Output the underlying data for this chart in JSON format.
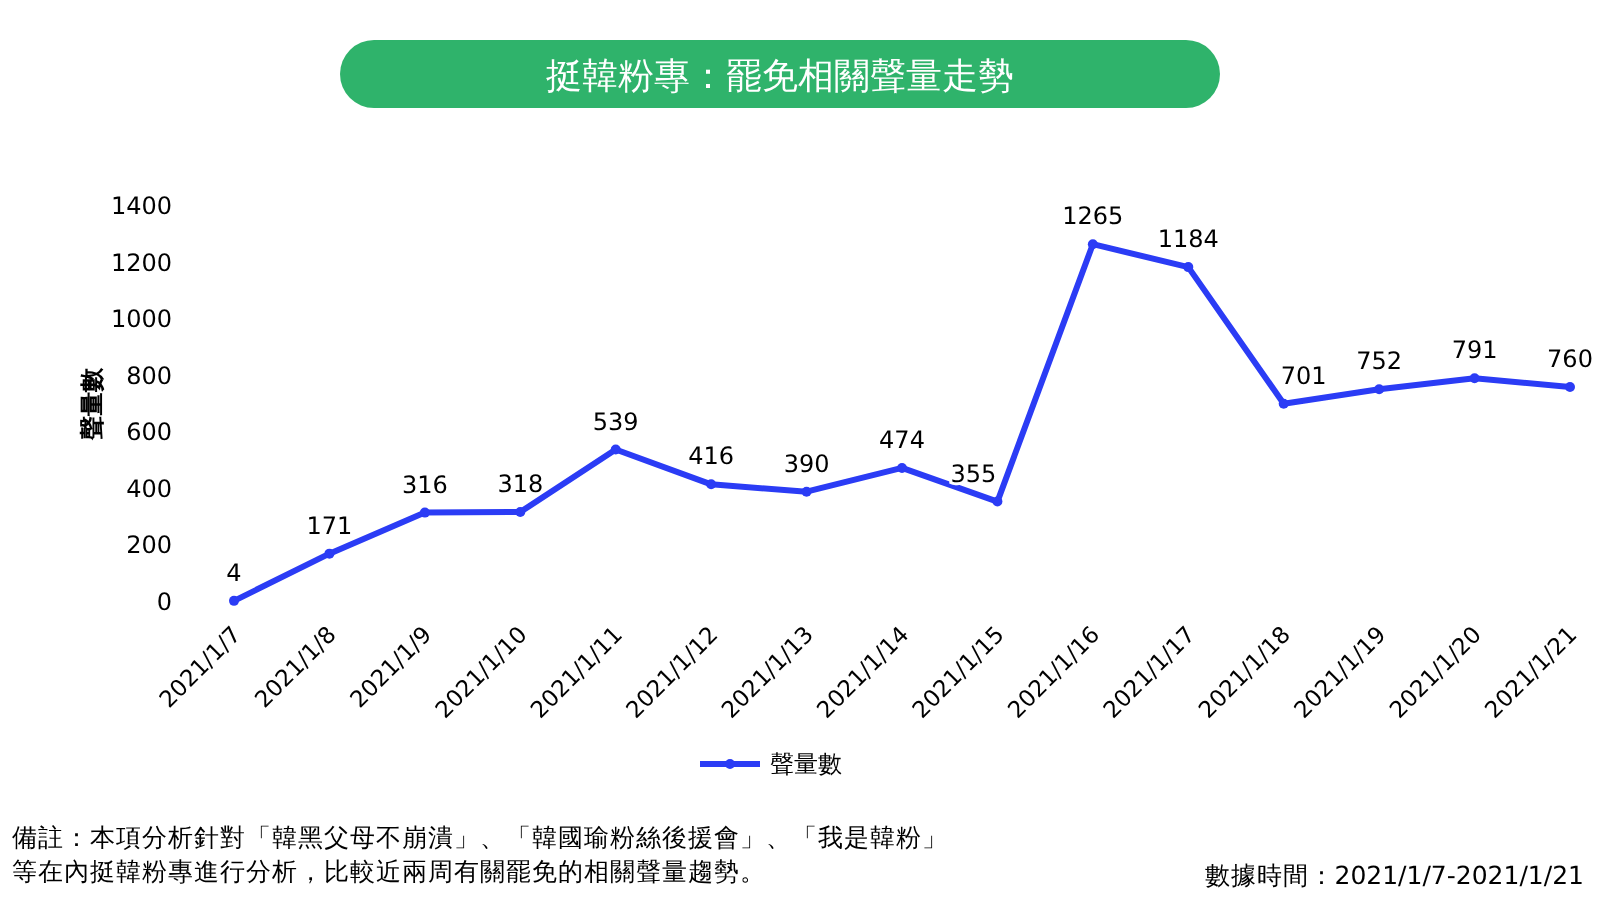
{
  "chart_data": {
    "type": "line",
    "title": "挺韓粉專：罷免相關聲量走勢",
    "ylabel": "聲量數",
    "categories": [
      "2021/1/7",
      "2021/1/8",
      "2021/1/9",
      "2021/1/10",
      "2021/1/11",
      "2021/1/12",
      "2021/1/13",
      "2021/1/14",
      "2021/1/15",
      "2021/1/16",
      "2021/1/17",
      "2021/1/18",
      "2021/1/19",
      "2021/1/20",
      "2021/1/21"
    ],
    "series": [
      {
        "name": "聲量數",
        "color": "#2b3cf5",
        "values": [
          4,
          171,
          316,
          318,
          539,
          416,
          390,
          474,
          355,
          1265,
          1184,
          701,
          752,
          791,
          760
        ]
      }
    ],
    "ylim": [
      0,
      1400
    ],
    "yticks": [
      0,
      200,
      400,
      600,
      800,
      1000,
      1200,
      1400
    ],
    "data_labels": true,
    "legend": "bottom",
    "marker": "circle",
    "grid": false,
    "annotations": [
      "備註：本項分析針對「韓黑父母不崩潰」、「韓國瑜粉絲後援會」、「我是韓粉」等在內挺韓粉專進行分析，比較近兩周有關罷免的相關聲量趨勢。",
      "數據時間：2021/1/7-2021/1/21"
    ]
  }
}
